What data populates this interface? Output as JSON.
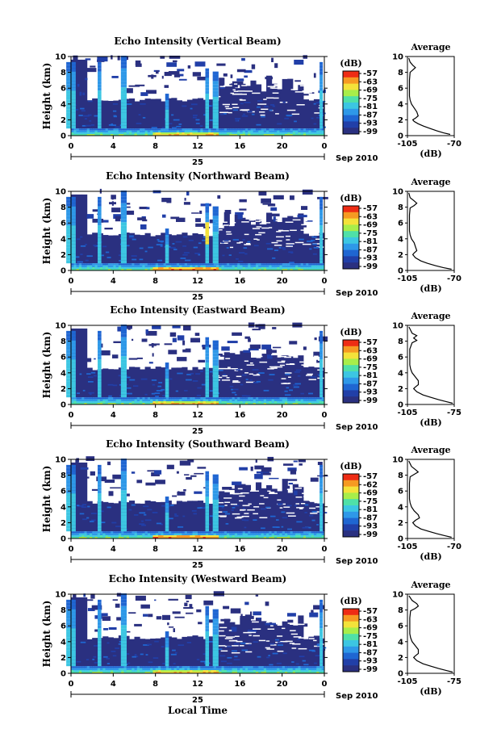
{
  "chart_data": [
    {
      "type": "heatmap",
      "title": "Echo Intensity (Vertical Beam)",
      "ylabel": "Height (km)",
      "xlim": [
        0,
        24
      ],
      "ylim": [
        0,
        10
      ],
      "xticks": [
        "0",
        "4",
        "8",
        "12",
        "16",
        "20",
        "0"
      ],
      "yticks": [
        "0",
        "2",
        "4",
        "6",
        "8",
        "10"
      ],
      "date_label": "25",
      "month_label": "Sep 2010",
      "colorbar": {
        "unit": "(dB)",
        "ticks": [
          "-57",
          "-63",
          "-69",
          "-75",
          "-81",
          "-87",
          "-93",
          "-99"
        ]
      },
      "average": {
        "title": "Average",
        "xlabel": "(dB)",
        "xticks": [
          "-105",
          "-70"
        ],
        "profile": [
          [
            -104,
            9.8
          ],
          [
            -103,
            9.3
          ],
          [
            -101,
            8.9
          ],
          [
            -99,
            8.6
          ],
          [
            -101,
            8.3
          ],
          [
            -103,
            8.0
          ],
          [
            -103.5,
            7.0
          ],
          [
            -103.5,
            6.0
          ],
          [
            -103.5,
            5.0
          ],
          [
            -103,
            4.5
          ],
          [
            -102,
            4.0
          ],
          [
            -100,
            3.5
          ],
          [
            -98,
            3.0
          ],
          [
            -97,
            2.5
          ],
          [
            -99,
            2.2
          ],
          [
            -101,
            2.0
          ],
          [
            -100,
            1.8
          ],
          [
            -97,
            1.5
          ],
          [
            -93,
            1.2
          ],
          [
            -88,
            0.9
          ],
          [
            -83,
            0.6
          ],
          [
            -78,
            0.35
          ],
          [
            -73,
            0.15
          ]
        ]
      }
    },
    {
      "type": "heatmap",
      "title": "Echo Intensity (Northward Beam)",
      "ylabel": "Height (km)",
      "xlim": [
        0,
        24
      ],
      "ylim": [
        0,
        10
      ],
      "xticks": [
        "0",
        "4",
        "8",
        "12",
        "16",
        "20",
        "0"
      ],
      "yticks": [
        "0",
        "2",
        "4",
        "6",
        "8",
        "10"
      ],
      "date_label": "25",
      "month_label": "Sep 2010",
      "colorbar": {
        "unit": "(dB)",
        "ticks": [
          "-57",
          "-63",
          "-69",
          "-75",
          "-81",
          "-87",
          "-93",
          "-99"
        ]
      },
      "average": {
        "title": "Average",
        "xlabel": "(dB)",
        "xticks": [
          "-105",
          "-70"
        ],
        "profile": [
          [
            -104,
            9.8
          ],
          [
            -103,
            9.2
          ],
          [
            -100,
            8.8
          ],
          [
            -98,
            8.5
          ],
          [
            -100,
            8.2
          ],
          [
            -103,
            7.9
          ],
          [
            -103.5,
            7.0
          ],
          [
            -103.5,
            6.0
          ],
          [
            -103.5,
            5.0
          ],
          [
            -103,
            4.5
          ],
          [
            -102,
            4.0
          ],
          [
            -100,
            3.5
          ],
          [
            -99,
            3.0
          ],
          [
            -98,
            2.5
          ],
          [
            -100,
            2.2
          ],
          [
            -101,
            2.0
          ],
          [
            -99,
            1.6
          ],
          [
            -95,
            1.2
          ],
          [
            -90,
            0.9
          ],
          [
            -84,
            0.6
          ],
          [
            -78,
            0.35
          ],
          [
            -72,
            0.15
          ]
        ]
      }
    },
    {
      "type": "heatmap",
      "title": "Echo Intensity (Eastward Beam)",
      "ylabel": "Height (km)",
      "xlim": [
        0,
        24
      ],
      "ylim": [
        0,
        10
      ],
      "xticks": [
        "0",
        "4",
        "8",
        "12",
        "16",
        "20",
        "0"
      ],
      "yticks": [
        "0",
        "2",
        "4",
        "6",
        "8",
        "10"
      ],
      "date_label": "25",
      "month_label": "Sep 2010",
      "colorbar": {
        "unit": "(dB)",
        "ticks": [
          "-57",
          "-63",
          "-69",
          "-75",
          "-81",
          "-87",
          "-93",
          "-99"
        ]
      },
      "average": {
        "title": "Average",
        "xlabel": "(dB)",
        "xticks": [
          "-105",
          "-75"
        ],
        "profile": [
          [
            -104,
            9.8
          ],
          [
            -102,
            9.0
          ],
          [
            -99,
            8.7
          ],
          [
            -101,
            8.4
          ],
          [
            -99,
            8.1
          ],
          [
            -102,
            7.8
          ],
          [
            -103.5,
            7.0
          ],
          [
            -103.5,
            6.0
          ],
          [
            -103.5,
            5.0
          ],
          [
            -103,
            4.5
          ],
          [
            -102,
            4.0
          ],
          [
            -100,
            3.5
          ],
          [
            -98,
            3.0
          ],
          [
            -98,
            2.5
          ],
          [
            -100,
            2.2
          ],
          [
            -101,
            2.0
          ],
          [
            -99,
            1.6
          ],
          [
            -95,
            1.2
          ],
          [
            -90,
            0.9
          ],
          [
            -85,
            0.6
          ],
          [
            -80,
            0.35
          ],
          [
            -76,
            0.15
          ]
        ]
      }
    },
    {
      "type": "heatmap",
      "title": "Echo Intensity (Southward Beam)",
      "ylabel": "Height (km)",
      "xlim": [
        0,
        24
      ],
      "ylim": [
        0,
        10
      ],
      "xticks": [
        "0",
        "4",
        "8",
        "12",
        "16",
        "20",
        "0"
      ],
      "yticks": [
        "0",
        "2",
        "4",
        "6",
        "8",
        "10"
      ],
      "date_label": "25",
      "month_label": "Sep 2010",
      "colorbar": {
        "unit": "(dB)",
        "ticks": [
          "-57",
          "-62",
          "-69",
          "-75",
          "-81",
          "-87",
          "-93",
          "-99"
        ]
      },
      "average": {
        "title": "Average",
        "xlabel": "(dB)",
        "xticks": [
          "-105",
          "-70"
        ],
        "profile": [
          [
            -104,
            9.8
          ],
          [
            -102,
            9.1
          ],
          [
            -99,
            8.7
          ],
          [
            -97,
            8.4
          ],
          [
            -100,
            8.1
          ],
          [
            -103,
            7.8
          ],
          [
            -103.5,
            7.0
          ],
          [
            -103.5,
            6.0
          ],
          [
            -103.5,
            5.0
          ],
          [
            -103,
            4.5
          ],
          [
            -102,
            4.0
          ],
          [
            -100,
            3.5
          ],
          [
            -97,
            3.0
          ],
          [
            -96,
            2.6
          ],
          [
            -99,
            2.3
          ],
          [
            -101,
            2.0
          ],
          [
            -99,
            1.6
          ],
          [
            -95,
            1.2
          ],
          [
            -89,
            0.9
          ],
          [
            -83,
            0.6
          ],
          [
            -77,
            0.35
          ],
          [
            -72,
            0.15
          ]
        ]
      }
    },
    {
      "type": "heatmap",
      "title": "Echo Intensity (Westward Beam)",
      "ylabel": "Height (km)",
      "xlabel": "Local Time",
      "xlim": [
        0,
        24
      ],
      "ylim": [
        0,
        10
      ],
      "xticks": [
        "0",
        "4",
        "8",
        "12",
        "16",
        "20",
        "0"
      ],
      "yticks": [
        "0",
        "2",
        "4",
        "6",
        "8",
        "10"
      ],
      "date_label": "25",
      "month_label": "Sep 2010",
      "colorbar": {
        "unit": "(dB)",
        "ticks": [
          "-57",
          "-63",
          "-69",
          "-75",
          "-81",
          "-87",
          "-93",
          "-99"
        ]
      },
      "average": {
        "title": "Average",
        "xlabel": "(dB)",
        "xticks": [
          "-105",
          "-75"
        ],
        "profile": [
          [
            -104,
            9.8
          ],
          [
            -102,
            9.2
          ],
          [
            -99,
            8.8
          ],
          [
            -98,
            8.5
          ],
          [
            -100,
            8.2
          ],
          [
            -103,
            7.9
          ],
          [
            -103.5,
            7.0
          ],
          [
            -103.5,
            6.0
          ],
          [
            -103.5,
            5.0
          ],
          [
            -103,
            4.5
          ],
          [
            -102,
            4.0
          ],
          [
            -100,
            3.5
          ],
          [
            -98,
            3.0
          ],
          [
            -98,
            2.5
          ],
          [
            -100,
            2.2
          ],
          [
            -101,
            2.0
          ],
          [
            -99,
            1.6
          ],
          [
            -95,
            1.2
          ],
          [
            -90,
            0.9
          ],
          [
            -85,
            0.6
          ],
          [
            -80,
            0.35
          ],
          [
            -76,
            0.15
          ]
        ]
      }
    }
  ],
  "colors": [
    "#2a3080",
    "#213fa8",
    "#1f66d2",
    "#2e98e8",
    "#3cc6e2",
    "#4fe0a8",
    "#a8ee4a",
    "#f4e23a",
    "#f69a22",
    "#ee2c14"
  ]
}
